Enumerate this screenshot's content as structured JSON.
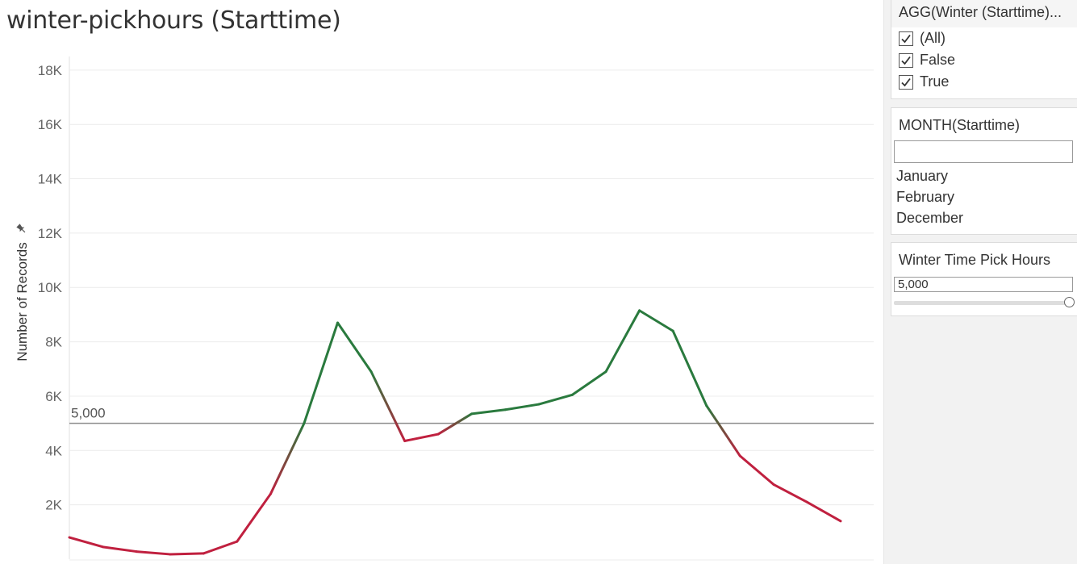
{
  "title": "winter-pickhours (Starttime)",
  "colors": {
    "below": "#c0203f",
    "above": "#2a7a3e",
    "refline": "#8c8c8c",
    "grid": "#ececec",
    "axis_text": "#666666"
  },
  "chart_data": {
    "type": "line",
    "ylabel": "Number of Records",
    "ylabel_icon": "pin-icon",
    "y_ticks": [
      "2K",
      "4K",
      "6K",
      "8K",
      "10K",
      "12K",
      "14K",
      "16K",
      "18K"
    ],
    "ylim": [
      0,
      18500
    ],
    "grid": true,
    "reference_line": {
      "value": 5000,
      "label": "5,000"
    },
    "series": [
      {
        "values": [
          800,
          450,
          280,
          180,
          210,
          650,
          2400,
          5000,
          8700,
          6900,
          4350,
          4600,
          5350,
          5500,
          5700,
          6050,
          6900,
          9150,
          8400,
          5650,
          3800,
          2750,
          2100,
          1400
        ]
      }
    ]
  },
  "sidebar": {
    "filter1": {
      "title": "AGG(Winter (Starttime)...",
      "items": [
        {
          "label": "(All)",
          "checked": true
        },
        {
          "label": "False",
          "checked": true
        },
        {
          "label": "True",
          "checked": true
        }
      ]
    },
    "filter2": {
      "title": "MONTH(Starttime)",
      "search_value": "",
      "months": [
        "January",
        "February",
        "December"
      ]
    },
    "param": {
      "title": "Winter Time Pick Hours",
      "value": "5,000",
      "slider_fraction": 1.0
    }
  }
}
